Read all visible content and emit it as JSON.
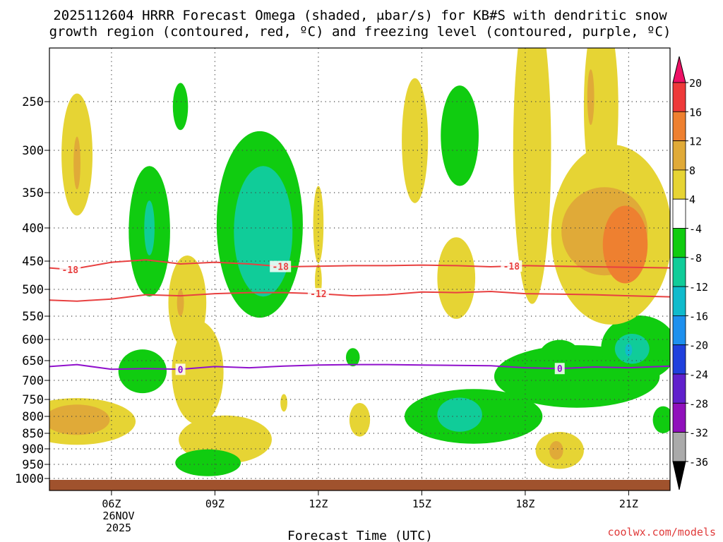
{
  "chart_data": {
    "type": "heatmap",
    "title_line1": "2025112604 HRRR Forecast Omega (shaded, μbar/s) for KB#S with dendritic snow",
    "title_line2": "growth region (contoured, red, ºC) and freezing level (contoured, purple, ºC)",
    "xlabel": "Forecast Time (UTC)",
    "x_date_line1": "26NOV",
    "x_date_line2": "2025",
    "watermark": "coolwx.com/models",
    "x_hour_range": [
      4.2,
      22.2
    ],
    "x_ticks": [
      {
        "label": "06Z",
        "hour": 6
      },
      {
        "label": "09Z",
        "hour": 9
      },
      {
        "label": "12Z",
        "hour": 12
      },
      {
        "label": "15Z",
        "hour": 15
      },
      {
        "label": "18Z",
        "hour": 18
      },
      {
        "label": "21Z",
        "hour": 21
      }
    ],
    "y_ticks": [
      {
        "label": "250",
        "hpa": 250
      },
      {
        "label": "300",
        "hpa": 300
      },
      {
        "label": "350",
        "hpa": 350
      },
      {
        "label": "400",
        "hpa": 400
      },
      {
        "label": "450",
        "hpa": 450
      },
      {
        "label": "500",
        "hpa": 500
      },
      {
        "label": "550",
        "hpa": 550
      },
      {
        "label": "600",
        "hpa": 600
      },
      {
        "label": "650",
        "hpa": 650
      },
      {
        "label": "700",
        "hpa": 700
      },
      {
        "label": "750",
        "hpa": 750
      },
      {
        "label": "800",
        "hpa": 800
      },
      {
        "label": "850",
        "hpa": 850
      },
      {
        "label": "900",
        "hpa": 900
      },
      {
        "label": "950",
        "hpa": 950
      },
      {
        "label": "1000",
        "hpa": 1000
      }
    ],
    "colorbar": {
      "labels": [
        "20",
        "16",
        "12",
        "8",
        "4",
        "-4",
        "-8",
        "-12",
        "-16",
        "-20",
        "-24",
        "-28",
        "-32",
        "-36"
      ],
      "colors": [
        "#ee1166",
        "#ee3a3a",
        "#ee8030",
        "#e0aa38",
        "#e6d434",
        "#ffffff",
        "#10cc10",
        "#10cc99",
        "#10bbcc",
        "#1e90ee",
        "#2040dd",
        "#6020cc",
        "#9010bb",
        "#aaaaaa",
        "#000000"
      ]
    },
    "contours": [
      {
        "name": "temp-minus-18",
        "label": "-18",
        "color": "#e84040",
        "points": [
          [
            4.2,
            462
          ],
          [
            4.8,
            465
          ],
          [
            6.0,
            452
          ],
          [
            7.0,
            448
          ],
          [
            8.0,
            455
          ],
          [
            9.0,
            452
          ],
          [
            10.0,
            455
          ],
          [
            11.0,
            460
          ],
          [
            12.0,
            459
          ],
          [
            13.0,
            458
          ],
          [
            14.0,
            458
          ],
          [
            15.0,
            457
          ],
          [
            16.0,
            458
          ],
          [
            17.0,
            460
          ],
          [
            18.0,
            458
          ],
          [
            19.0,
            459
          ],
          [
            20.0,
            460
          ],
          [
            21.0,
            461
          ],
          [
            22.2,
            462
          ]
        ]
      },
      {
        "name": "temp-minus-12",
        "label": "-12",
        "color": "#e84040",
        "points": [
          [
            4.2,
            520
          ],
          [
            5.0,
            522
          ],
          [
            6.0,
            518
          ],
          [
            7.0,
            510
          ],
          [
            8.0,
            512
          ],
          [
            9.0,
            508
          ],
          [
            10.0,
            506
          ],
          [
            11.0,
            506
          ],
          [
            12.0,
            508
          ],
          [
            13.0,
            512
          ],
          [
            14.0,
            510
          ],
          [
            15.0,
            505
          ],
          [
            16.0,
            506
          ],
          [
            17.0,
            504
          ],
          [
            18.0,
            508
          ],
          [
            19.0,
            509
          ],
          [
            20.0,
            510
          ],
          [
            21.0,
            512
          ],
          [
            22.2,
            514
          ]
        ]
      },
      {
        "name": "freezing-level",
        "label": "0",
        "color": "#9010cc",
        "points": [
          [
            4.2,
            665
          ],
          [
            5.0,
            660
          ],
          [
            6.0,
            672
          ],
          [
            7.0,
            670
          ],
          [
            8.0,
            672
          ],
          [
            9.0,
            665
          ],
          [
            10.0,
            668
          ],
          [
            11.0,
            664
          ],
          [
            12.0,
            661
          ],
          [
            13.0,
            660
          ],
          [
            14.0,
            660
          ],
          [
            15.0,
            661
          ],
          [
            16.0,
            662
          ],
          [
            17.0,
            663
          ],
          [
            18.0,
            668
          ],
          [
            19.0,
            670
          ],
          [
            20.0,
            666
          ],
          [
            21.0,
            668
          ],
          [
            22.2,
            664
          ]
        ]
      }
    ],
    "omega_regions": [
      {
        "name": "up-a-1",
        "color": "#e6d434",
        "h": 5.0,
        "p": 305,
        "dh": 0.45,
        "dp": 70
      },
      {
        "name": "up-a-2",
        "color": "#e0aa38",
        "h": 5.0,
        "p": 315,
        "dh": 0.1,
        "dp": 30
      },
      {
        "name": "up-b-1",
        "color": "#e6d434",
        "h": 5.0,
        "p": 815,
        "dh": 1.7,
        "dp": 70
      },
      {
        "name": "up-b-2",
        "color": "#e0aa38",
        "h": 5.0,
        "p": 810,
        "dh": 0.95,
        "dp": 45
      },
      {
        "name": "dn-c-1",
        "color": "#10cc10",
        "h": 7.1,
        "p": 405,
        "dh": 0.6,
        "dp": 95
      },
      {
        "name": "dn-c-2",
        "color": "#10cc99",
        "h": 7.1,
        "p": 400,
        "dh": 0.15,
        "dp": 40
      },
      {
        "name": "dn-d-1",
        "color": "#10cc10",
        "h": 8.0,
        "p": 255,
        "dh": 0.22,
        "dp": 25
      },
      {
        "name": "dn-e-1",
        "color": "#10cc10",
        "h": 6.9,
        "p": 677,
        "dh": 0.7,
        "dp": 55
      },
      {
        "name": "up-f-1",
        "color": "#e6d434",
        "h": 8.2,
        "p": 525,
        "dh": 0.55,
        "dp": 90
      },
      {
        "name": "up-f-2",
        "color": "#e6d434",
        "h": 8.5,
        "p": 680,
        "dh": 0.75,
        "dp": 130
      },
      {
        "name": "up-f-3",
        "color": "#e6d434",
        "h": 9.3,
        "p": 870,
        "dh": 1.35,
        "dp": 75
      },
      {
        "name": "up-f-4",
        "color": "#e0aa38",
        "h": 8.0,
        "p": 525,
        "dh": 0.1,
        "dp": 25
      },
      {
        "name": "dn-g-1",
        "color": "#10cc10",
        "h": 8.8,
        "p": 945,
        "dh": 0.95,
        "dp": 45
      },
      {
        "name": "dn-h-1",
        "color": "#10cc10",
        "h": 10.3,
        "p": 395,
        "dh": 1.25,
        "dp": 130
      },
      {
        "name": "dn-h-2",
        "color": "#10cc99",
        "h": 10.4,
        "p": 405,
        "dh": 0.85,
        "dp": 95
      },
      {
        "name": "up-i-1",
        "color": "#e6d434",
        "h": 12.0,
        "p": 395,
        "dh": 0.15,
        "dp": 55
      },
      {
        "name": "up-i-2",
        "color": "#e6d434",
        "h": 12.0,
        "p": 485,
        "dh": 0.1,
        "dp": 30
      },
      {
        "name": "dn-j-1",
        "color": "#10cc10",
        "h": 13.0,
        "p": 642,
        "dh": 0.2,
        "dp": 22
      },
      {
        "name": "up-k-1",
        "color": "#e6d434",
        "h": 11.0,
        "p": 760,
        "dh": 0.1,
        "dp": 25
      },
      {
        "name": "up-k-2",
        "color": "#e6d434",
        "h": 13.2,
        "p": 810,
        "dh": 0.3,
        "dp": 50
      },
      {
        "name": "up-l-1",
        "color": "#e6d434",
        "h": 14.8,
        "p": 290,
        "dh": 0.38,
        "dp": 70
      },
      {
        "name": "dn-m-1",
        "color": "#10cc10",
        "h": 16.1,
        "p": 285,
        "dh": 0.55,
        "dp": 55
      },
      {
        "name": "up-n-1",
        "color": "#e6d434",
        "h": 16.0,
        "p": 480,
        "dh": 0.55,
        "dp": 70
      },
      {
        "name": "dn-o-1",
        "color": "#10cc10",
        "h": 16.5,
        "p": 800,
        "dh": 2.0,
        "dp": 80
      },
      {
        "name": "dn-o-2",
        "color": "#10cc10",
        "h": 19.5,
        "p": 690,
        "dh": 2.4,
        "dp": 80
      },
      {
        "name": "dn-o-3",
        "color": "#10cc10",
        "h": 21.3,
        "p": 620,
        "dh": 1.1,
        "dp": 75
      },
      {
        "name": "dn-o-4",
        "color": "#10cc10",
        "h": 19.0,
        "p": 640,
        "dh": 0.6,
        "dp": 40
      },
      {
        "name": "dn-o-5",
        "color": "#10cc99",
        "h": 16.1,
        "p": 795,
        "dh": 0.65,
        "dp": 50
      },
      {
        "name": "dn-o-6",
        "color": "#10cc99",
        "h": 21.1,
        "p": 622,
        "dh": 0.5,
        "dp": 35
      },
      {
        "name": "dn-o-7",
        "color": "#10bbcc",
        "h": 21.0,
        "p": 625,
        "dh": 0.1,
        "dp": 15
      },
      {
        "name": "dn-o-8",
        "color": "#10cc10",
        "h": 22.0,
        "p": 810,
        "dh": 0.3,
        "dp": 40
      },
      {
        "name": "up-p-1",
        "color": "#e6d434",
        "h": 18.2,
        "p": 300,
        "dh": 0.55,
        "dp": 190
      },
      {
        "name": "up-p-2",
        "color": "#e6d434",
        "h": 20.5,
        "p": 410,
        "dh": 1.75,
        "dp": 130
      },
      {
        "name": "up-p-3",
        "color": "#e6d434",
        "h": 20.2,
        "p": 255,
        "dh": 0.5,
        "dp": 110
      },
      {
        "name": "up-p-4",
        "color": "#e0aa38",
        "h": 20.3,
        "p": 405,
        "dh": 1.25,
        "dp": 65
      },
      {
        "name": "up-p-5",
        "color": "#ee8030",
        "h": 20.9,
        "p": 425,
        "dh": 0.65,
        "dp": 60
      },
      {
        "name": "up-p-6",
        "color": "#e0aa38",
        "h": 19.9,
        "p": 245,
        "dh": 0.1,
        "dp": 30
      },
      {
        "name": "up-q-1",
        "color": "#e6d434",
        "h": 19.0,
        "p": 905,
        "dh": 0.7,
        "dp": 60
      },
      {
        "name": "up-q-2",
        "color": "#e0aa38",
        "h": 18.9,
        "p": 905,
        "dh": 0.2,
        "dp": 30
      }
    ]
  }
}
